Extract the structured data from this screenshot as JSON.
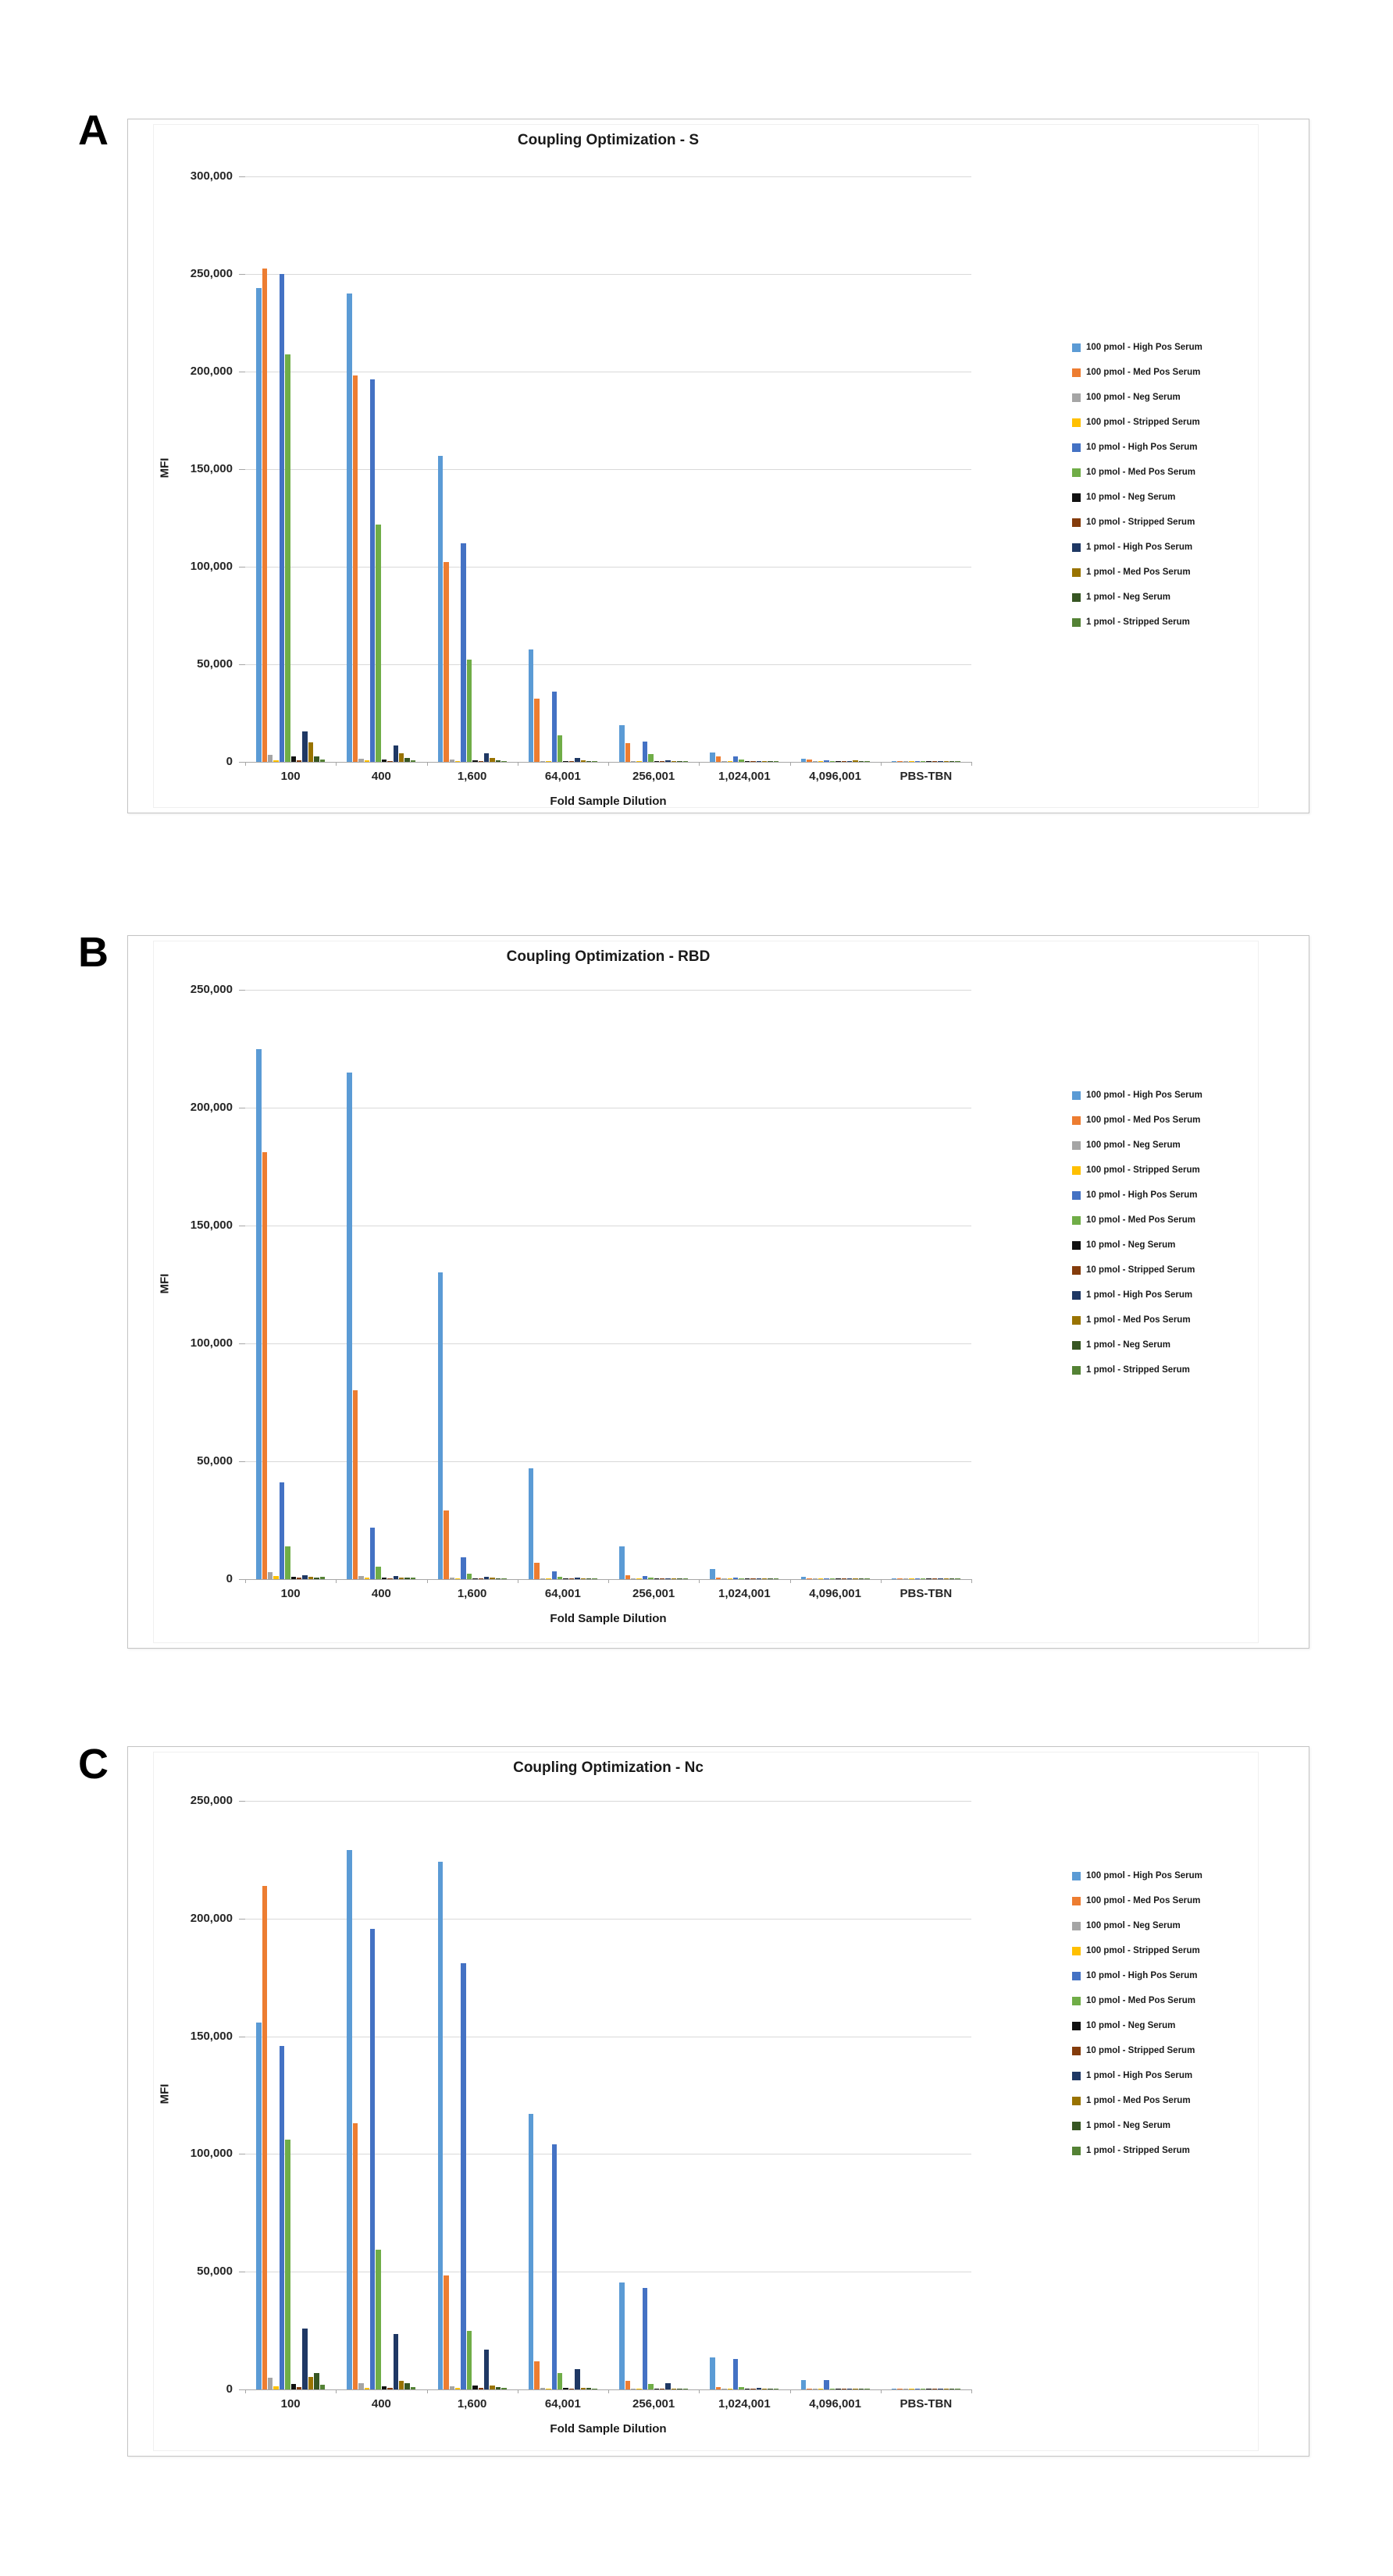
{
  "chart_data": [
    {
      "type": "bar",
      "panel_label": "A",
      "title": "Coupling Optimization - S",
      "xlabel": "Fold Sample Dilution",
      "ylabel": "MFI",
      "ylim": [
        0,
        300000
      ],
      "grid": true,
      "legend_position": "right",
      "yticks": [
        {
          "value": 0,
          "label": "0"
        },
        {
          "value": 50000,
          "label": "50,000"
        },
        {
          "value": 100000,
          "label": "100,000"
        },
        {
          "value": 150000,
          "label": "150,000"
        },
        {
          "value": 200000,
          "label": "200,000"
        },
        {
          "value": 250000,
          "label": "250,000"
        },
        {
          "value": 300000,
          "label": "300,000"
        }
      ],
      "categories": [
        "100",
        "400",
        "1,600",
        "64,001",
        "256,001",
        "1,024,001",
        "4,096,001",
        "PBS-TBN"
      ],
      "series": [
        {
          "name": "100 pmol - High Pos Serum",
          "color": "#5B9BD5",
          "values": [
            243000,
            240000,
            157000,
            57500,
            19000,
            5000,
            1500,
            300
          ]
        },
        {
          "name": "100 pmol - Med Pos Serum",
          "color": "#ED7D31",
          "values": [
            253000,
            198000,
            102500,
            32500,
            9500,
            2800,
            1100,
            250
          ]
        },
        {
          "name": "100 pmol - Neg Serum",
          "color": "#A5A5A5",
          "values": [
            3700,
            1800,
            1200,
            600,
            400,
            300,
            250,
            200
          ]
        },
        {
          "name": "100 pmol - Stripped Serum",
          "color": "#FFC000",
          "values": [
            1000,
            700,
            500,
            350,
            300,
            250,
            200,
            150
          ]
        },
        {
          "name": "10 pmol - High Pos Serum",
          "color": "#4472C4",
          "values": [
            250000,
            196000,
            112000,
            36000,
            10500,
            3000,
            900,
            250
          ]
        },
        {
          "name": "10 pmol - Med Pos Serum",
          "color": "#70AD47",
          "values": [
            209000,
            121500,
            52500,
            13500,
            4000,
            1100,
            500,
            200
          ]
        },
        {
          "name": "10 pmol - Neg Serum",
          "color": "#111111",
          "values": [
            2800,
            1400,
            900,
            500,
            350,
            250,
            200,
            150
          ]
        },
        {
          "name": "10 pmol - Stripped Serum",
          "color": "#843C0C",
          "values": [
            900,
            600,
            400,
            300,
            250,
            200,
            150,
            100
          ]
        },
        {
          "name": "1 pmol - High Pos Serum",
          "color": "#1F3864",
          "values": [
            15500,
            8500,
            4300,
            1900,
            800,
            400,
            250,
            150
          ]
        },
        {
          "name": "1 pmol - Med Pos Serum",
          "color": "#997300",
          "values": [
            10000,
            4500,
            2100,
            1000,
            450,
            300,
            900,
            150
          ]
        },
        {
          "name": "1 pmol - Neg Serum",
          "color": "#375623",
          "values": [
            2900,
            2000,
            1000,
            500,
            300,
            250,
            200,
            100
          ]
        },
        {
          "name": "1 pmol - Stripped Serum",
          "color": "#548235",
          "values": [
            1400,
            900,
            600,
            350,
            250,
            200,
            150,
            100
          ]
        }
      ]
    },
    {
      "type": "bar",
      "panel_label": "B",
      "title": "Coupling Optimization - RBD",
      "xlabel": "Fold Sample Dilution",
      "ylabel": "MFI",
      "ylim": [
        0,
        250000
      ],
      "grid": true,
      "legend_position": "right",
      "yticks": [
        {
          "value": 0,
          "label": "0"
        },
        {
          "value": 50000,
          "label": "50,000"
        },
        {
          "value": 100000,
          "label": "100,000"
        },
        {
          "value": 150000,
          "label": "150,000"
        },
        {
          "value": 200000,
          "label": "200,000"
        },
        {
          "value": 250000,
          "label": "250,000"
        }
      ],
      "categories": [
        "100",
        "400",
        "1,600",
        "64,001",
        "256,001",
        "1,024,001",
        "4,096,001",
        "PBS-TBN"
      ],
      "series": [
        {
          "name": "100 pmol - High Pos Serum",
          "color": "#5B9BD5",
          "values": [
            225000,
            215000,
            130000,
            47000,
            14000,
            4200,
            1100,
            300
          ]
        },
        {
          "name": "100 pmol - Med Pos Serum",
          "color": "#ED7D31",
          "values": [
            181000,
            80000,
            29000,
            6800,
            1800,
            700,
            400,
            200
          ]
        },
        {
          "name": "100 pmol - Neg Serum",
          "color": "#A5A5A5",
          "values": [
            3000,
            1200,
            700,
            400,
            300,
            250,
            200,
            150
          ]
        },
        {
          "name": "100 pmol - Stripped Serum",
          "color": "#FFC000",
          "values": [
            1200,
            600,
            400,
            300,
            250,
            200,
            150,
            100
          ]
        },
        {
          "name": "10 pmol - High Pos Serum",
          "color": "#4472C4",
          "values": [
            41000,
            22000,
            9200,
            3200,
            1300,
            600,
            300,
            150
          ]
        },
        {
          "name": "10 pmol - Med Pos Serum",
          "color": "#70AD47",
          "values": [
            14000,
            5200,
            2300,
            900,
            500,
            300,
            200,
            100
          ]
        },
        {
          "name": "10 pmol - Neg Serum",
          "color": "#111111",
          "values": [
            900,
            500,
            400,
            300,
            250,
            200,
            150,
            100
          ]
        },
        {
          "name": "10 pmol - Stripped Serum",
          "color": "#843C0C",
          "values": [
            600,
            400,
            300,
            250,
            200,
            150,
            100,
            100
          ]
        },
        {
          "name": "1 pmol - High Pos Serum",
          "color": "#1F3864",
          "values": [
            1600,
            1400,
            1100,
            500,
            350,
            250,
            200,
            100
          ]
        },
        {
          "name": "1 pmol - Med Pos Serum",
          "color": "#997300",
          "values": [
            1100,
            700,
            500,
            350,
            250,
            200,
            150,
            100
          ]
        },
        {
          "name": "1 pmol - Neg Serum",
          "color": "#375623",
          "values": [
            800,
            500,
            400,
            300,
            250,
            200,
            150,
            100
          ]
        },
        {
          "name": "1 pmol - Stripped Serum",
          "color": "#548235",
          "values": [
            1000,
            600,
            400,
            300,
            250,
            200,
            150,
            100
          ]
        }
      ]
    },
    {
      "type": "bar",
      "panel_label": "C",
      "title": "Coupling Optimization - Nc",
      "xlabel": "Fold Sample Dilution",
      "ylabel": "MFI",
      "ylim": [
        0,
        250000
      ],
      "grid": true,
      "legend_position": "right",
      "yticks": [
        {
          "value": 0,
          "label": "0"
        },
        {
          "value": 50000,
          "label": "50,000"
        },
        {
          "value": 100000,
          "label": "100,000"
        },
        {
          "value": 150000,
          "label": "150,000"
        },
        {
          "value": 200000,
          "label": "200,000"
        },
        {
          "value": 250000,
          "label": "250,000"
        }
      ],
      "categories": [
        "100",
        "400",
        "1,600",
        "64,001",
        "256,001",
        "1,024,001",
        "4,096,001",
        "PBS-TBN"
      ],
      "series": [
        {
          "name": "100 pmol - High Pos Serum",
          "color": "#5B9BD5",
          "values": [
            156000,
            229000,
            224000,
            117000,
            45500,
            13500,
            4000,
            300
          ]
        },
        {
          "name": "100 pmol - Med Pos Serum",
          "color": "#ED7D31",
          "values": [
            214000,
            113000,
            48500,
            12000,
            3800,
            1100,
            400,
            200
          ]
        },
        {
          "name": "100 pmol - Neg Serum",
          "color": "#A5A5A5",
          "values": [
            5000,
            2500,
            1200,
            600,
            400,
            300,
            250,
            200
          ]
        },
        {
          "name": "100 pmol - Stripped Serum",
          "color": "#FFC000",
          "values": [
            1200,
            700,
            500,
            400,
            300,
            250,
            200,
            150
          ]
        },
        {
          "name": "10 pmol - High Pos Serum",
          "color": "#4472C4",
          "values": [
            146000,
            195500,
            181000,
            104000,
            43000,
            13000,
            4000,
            250
          ]
        },
        {
          "name": "10 pmol - Med Pos Serum",
          "color": "#70AD47",
          "values": [
            106000,
            59500,
            25000,
            7000,
            2200,
            1000,
            400,
            200
          ]
        },
        {
          "name": "10 pmol - Neg Serum",
          "color": "#111111",
          "values": [
            2300,
            1200,
            1500,
            700,
            400,
            300,
            250,
            150
          ]
        },
        {
          "name": "10 pmol - Stripped Serum",
          "color": "#843C0C",
          "values": [
            1100,
            800,
            600,
            400,
            300,
            250,
            200,
            100
          ]
        },
        {
          "name": "1 pmol - High Pos Serum",
          "color": "#1F3864",
          "values": [
            26000,
            23500,
            17000,
            8500,
            2800,
            700,
            300,
            150
          ]
        },
        {
          "name": "1 pmol - Med Pos Serum",
          "color": "#997300",
          "values": [
            5200,
            3800,
            1800,
            700,
            400,
            300,
            250,
            100
          ]
        },
        {
          "name": "1 pmol - Neg Serum",
          "color": "#375623",
          "values": [
            6800,
            2600,
            900,
            500,
            300,
            250,
            200,
            100
          ]
        },
        {
          "name": "1 pmol - Stripped Serum",
          "color": "#548235",
          "values": [
            2000,
            1100,
            600,
            400,
            300,
            200,
            150,
            100
          ]
        }
      ]
    }
  ]
}
